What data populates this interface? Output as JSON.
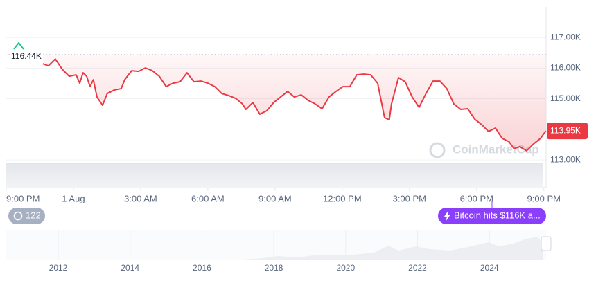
{
  "chart_data": {
    "type": "line",
    "x": [
      1.64,
      1.88,
      2.19,
      2.5,
      2.81,
      3.12,
      3.28,
      3.43,
      3.59,
      3.74,
      3.89,
      4.05,
      4.3,
      4.51,
      4.82,
      5.13,
      5.29,
      5.6,
      5.91,
      6.21,
      6.52,
      6.83,
      7.14,
      7.45,
      7.76,
      8.07,
      8.38,
      8.69,
      9.0,
      9.31,
      9.62,
      9.93,
      10.24,
      10.54,
      10.7,
      11.01,
      11.32,
      11.63,
      11.94,
      12.25,
      12.56,
      12.86,
      13.17,
      13.48,
      13.79,
      14.1,
      14.41,
      14.72,
      15.03,
      15.34,
      15.65,
      15.96,
      16.27,
      16.58,
      16.89,
      17.1,
      17.2,
      17.51,
      17.81,
      18.12,
      18.43,
      18.74,
      19.05,
      19.36,
      19.67,
      19.98,
      20.29,
      20.6,
      20.91,
      21.22,
      21.53,
      21.84,
      22.14,
      22.45,
      22.67,
      22.92,
      23.23,
      23.54,
      23.85,
      24.09
    ],
    "values": [
      116140,
      116075,
      116300,
      115962,
      115736,
      115781,
      115510,
      115849,
      115736,
      115397,
      115623,
      115059,
      114788,
      115172,
      115285,
      115330,
      115623,
      115917,
      115894,
      116007,
      115917,
      115736,
      115397,
      115510,
      115555,
      115849,
      115555,
      115578,
      115510,
      115397,
      115172,
      115104,
      115014,
      114833,
      114653,
      114878,
      114495,
      114608,
      114878,
      115059,
      115240,
      115059,
      115127,
      114946,
      114833,
      114675,
      115059,
      115240,
      115397,
      115397,
      115781,
      115804,
      115781,
      115510,
      114382,
      114314,
      114833,
      115691,
      115555,
      115059,
      114720,
      115172,
      115578,
      115578,
      115330,
      114833,
      114653,
      114675,
      114337,
      114156,
      113931,
      114043,
      113705,
      113592,
      113366,
      113434,
      113299,
      113524,
      113705,
      113950
    ],
    "color": "#ea3943",
    "xlim": [
      -0.03,
      24.1
    ],
    "xticks": [
      {
        "value": 0,
        "label": "9:00 PM"
      },
      {
        "value": 3,
        "label": "1 Aug"
      },
      {
        "value": 6,
        "label": "3:00 AM"
      },
      {
        "value": 9,
        "label": "6:00 AM"
      },
      {
        "value": 12,
        "label": "9:00 AM"
      },
      {
        "value": 15,
        "label": "12:00 PM"
      },
      {
        "value": 18,
        "label": "3:00 PM"
      },
      {
        "value": 21,
        "label": "6:00 PM"
      },
      {
        "value": 24,
        "label": "9:00 PM"
      }
    ],
    "ylim": [
      112120,
      118000
    ],
    "yticks": [
      {
        "value": 113000,
        "label": "113.00K"
      },
      {
        "value": 115000,
        "label": "115.00K"
      },
      {
        "value": 116000,
        "label": "116.00K"
      },
      {
        "value": 117000,
        "label": "117.00K"
      }
    ],
    "grid": true,
    "reference_line": {
      "value": 116440,
      "label": "116.44K"
    },
    "current_price": {
      "value": 113950,
      "label": "113.95K"
    },
    "watermark": "CoinMarketCap"
  },
  "badges": {
    "comments": "122",
    "news": "Bitcoin hits $116K a..."
  },
  "navigator": {
    "years": [
      "2012",
      "2014",
      "2016",
      "2018",
      "2020",
      "2022",
      "2024"
    ]
  }
}
